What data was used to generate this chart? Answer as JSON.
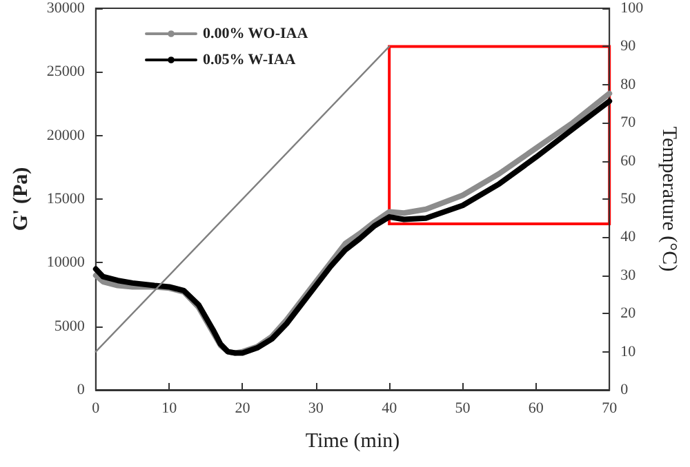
{
  "chart_data": {
    "type": "line",
    "xlabel": "Time (min)",
    "ylabel": "G' (Pa)",
    "y2label": "Temperature (°C)",
    "xlim": [
      0,
      70
    ],
    "xticks": [
      0,
      10,
      20,
      30,
      40,
      50,
      60,
      70
    ],
    "ylim": [
      0,
      30000
    ],
    "yticks": [
      0,
      5000,
      10000,
      15000,
      20000,
      25000,
      30000
    ],
    "y2lim": [
      0,
      100
    ],
    "y2ticks": [
      0,
      10,
      20,
      30,
      40,
      50,
      60,
      70,
      80,
      90,
      100
    ],
    "grid": false,
    "legend": "top left",
    "marker": "none",
    "line_style": "solid",
    "x": [
      0,
      1,
      3,
      5,
      8,
      10,
      12,
      14,
      16,
      17,
      18,
      19,
      20,
      22,
      24,
      26,
      28,
      30,
      32,
      34,
      36,
      38,
      40,
      42,
      45,
      50,
      55,
      60,
      65,
      70
    ],
    "series": [
      {
        "name": "0.00% WO-IAA",
        "color": "#8c8c8c",
        "values": [
          9000,
          8500,
          8200,
          8100,
          8100,
          8000,
          7700,
          6500,
          4500,
          3500,
          3000,
          2900,
          3000,
          3400,
          4200,
          5500,
          7000,
          8500,
          10000,
          11500,
          12300,
          13200,
          14000,
          13900,
          14200,
          15300,
          17000,
          19000,
          21000,
          23300
        ]
      },
      {
        "name": "0.05% W-IAA",
        "color": "#000000",
        "values": [
          9500,
          8900,
          8600,
          8400,
          8200,
          8100,
          7800,
          6700,
          4700,
          3600,
          3000,
          2900,
          2900,
          3300,
          4000,
          5200,
          6700,
          8200,
          9700,
          11000,
          11900,
          12900,
          13600,
          13400,
          13500,
          14500,
          16200,
          18300,
          20500,
          22700
        ]
      },
      {
        "color": "#7f7f7f",
        "axis": "y2",
        "x": [
          0,
          40
        ],
        "values": [
          10,
          90
        ]
      }
    ]
  }
}
